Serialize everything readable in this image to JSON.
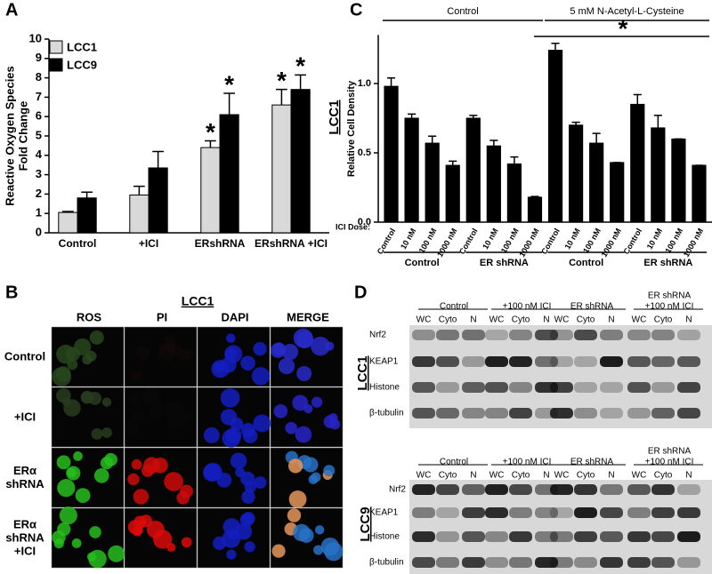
{
  "chart_data": [
    {
      "type": "bar",
      "panel": "A",
      "ylabel": [
        "Reactive Oxygen Species",
        "Fold Change"
      ],
      "categories": [
        "Control",
        "+ICI",
        "ERshRNA",
        "ERshRNA +ICI"
      ],
      "series": [
        {
          "name": "LCC1",
          "color": "#d9d9d9",
          "values": [
            1.05,
            1.95,
            4.4,
            6.6
          ],
          "errors": [
            0.05,
            0.45,
            0.35,
            0.8
          ],
          "significance": [
            null,
            null,
            "*",
            "*"
          ]
        },
        {
          "name": "LCC9",
          "color": "#000000",
          "values": [
            1.8,
            3.35,
            6.1,
            7.4
          ],
          "errors": [
            0.3,
            0.85,
            1.1,
            0.75
          ],
          "significance": [
            null,
            null,
            "*",
            "*"
          ]
        }
      ],
      "ylim": [
        0,
        10
      ],
      "yticks": [
        0,
        1,
        2,
        3,
        4,
        5,
        6,
        7,
        8,
        9,
        10
      ],
      "legend": "top-left"
    },
    {
      "type": "bar",
      "panel": "C",
      "ylabel": "Relative Cell Density",
      "cell_line": "LCC1",
      "category_axis_label": "ICI Dose:",
      "categories": [
        "Control",
        "10 nM",
        "100 nM",
        "1000 nM",
        "Control",
        "10 nM",
        "100 nM",
        "1000 nM",
        "Control",
        "10 nM",
        "100 nM",
        "1000 nM",
        "Control",
        "10 nM",
        "100 nM",
        "1000 nM"
      ],
      "values": [
        0.98,
        0.75,
        0.57,
        0.41,
        0.75,
        0.55,
        0.42,
        0.18,
        1.24,
        0.7,
        0.57,
        0.43,
        0.85,
        0.68,
        0.6,
        0.41
      ],
      "errors": [
        0.06,
        0.03,
        0.05,
        0.03,
        0.02,
        0.04,
        0.05,
        0.005,
        0.05,
        0.02,
        0.07,
        0,
        0.07,
        0.09,
        0,
        0
      ],
      "color": "#000000",
      "groups": [
        "Control",
        "ER shRNA",
        "Control",
        "ER shRNA"
      ],
      "top_groups": [
        "Control",
        "5 mM N-Acetyl-L-Cysteine"
      ],
      "significance_label": "*",
      "ylim": [
        0,
        1.35
      ],
      "yticks": [
        {
          "value": 0,
          "label": "0.0"
        },
        {
          "value": 0.5,
          "label": "0.5"
        },
        {
          "value": 1,
          "label": "1.0"
        }
      ]
    }
  ],
  "micrographs": {
    "panel": "B",
    "title": "LCC1",
    "columns": [
      "ROS",
      "PI",
      "DAPI",
      "MERGE"
    ],
    "rows": [
      [
        "Control"
      ],
      [
        "+ICI"
      ],
      [
        "ERα",
        "shRNA"
      ],
      [
        "ERα",
        "shRNA",
        "+ICI"
      ]
    ]
  },
  "blots": {
    "panel": "D",
    "rows": [
      "Nrf2",
      "KEAP1",
      "Histone",
      "β-tubulin"
    ],
    "groups": [
      [
        "Control"
      ],
      [
        "+100 nM ICI"
      ],
      [
        "ER shRNA"
      ],
      [
        "ER shRNA",
        "+100 nM ICI"
      ]
    ],
    "lanes": [
      "WC",
      "Cyto",
      "N"
    ],
    "cell_lines": [
      "LCC1",
      "LCC9"
    ]
  }
}
